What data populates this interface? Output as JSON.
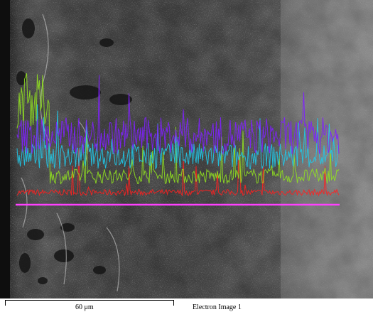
{
  "footer": {
    "scale_label": "60 μm",
    "image_label": "Electron Image 1"
  },
  "linescan": {
    "baseline_color": "#ff40ff",
    "series": [
      {
        "color": "#8020ff",
        "level": 0.5
      },
      {
        "color": "#20c8e8",
        "level": 0.35
      },
      {
        "color": "#90e020",
        "level": 0.2
      },
      {
        "color": "#ff2020",
        "level": 0.08
      }
    ]
  }
}
